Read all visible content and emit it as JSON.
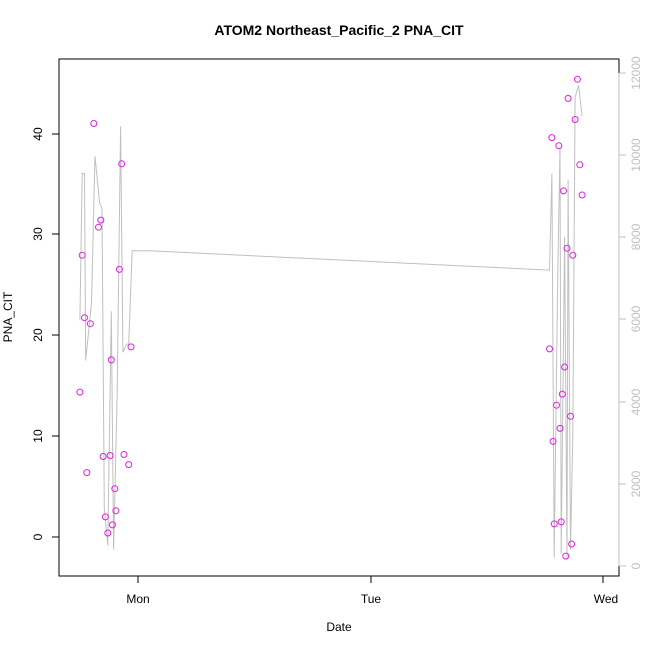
{
  "chart_data": {
    "type": "scatter",
    "title": "ATOM2 Northeast_Pacific_2 PNA_CIT",
    "xlabel": "Date",
    "ylabel": "PNA_CIT",
    "x_ticks": [
      "Mon",
      "Tue",
      "Wed"
    ],
    "y_ticks": [
      "0",
      "10",
      "20",
      "30",
      "40"
    ],
    "y2_ticks": [
      "0",
      "2000",
      "4000",
      "6000",
      "8000",
      "10000",
      "12000"
    ],
    "ylim": [
      -3.8,
      47.8
    ],
    "y2lim": [
      -200,
      12300
    ],
    "grid": false,
    "colors": {
      "points": "#e020e0",
      "line": "#c0c0c0",
      "axis": "#000000",
      "axis_right": "#c0c0c0"
    },
    "series": [
      {
        "marker": "circle-open",
        "axis": "left",
        "points": [
          {
            "day": -0.25,
            "y": 14.4
          },
          {
            "day": -0.24,
            "y": 28.0
          },
          {
            "day": -0.23,
            "y": 21.8
          },
          {
            "day": -0.22,
            "y": 6.4
          },
          {
            "day": -0.205,
            "y": 21.2
          },
          {
            "day": -0.19,
            "y": 41.1
          },
          {
            "day": -0.17,
            "y": 30.8
          },
          {
            "day": -0.16,
            "y": 31.5
          },
          {
            "day": -0.15,
            "y": 8.0
          },
          {
            "day": -0.14,
            "y": 2.0
          },
          {
            "day": -0.13,
            "y": 0.4
          },
          {
            "day": -0.12,
            "y": 8.1
          },
          {
            "day": -0.115,
            "y": 17.6
          },
          {
            "day": -0.11,
            "y": 1.2
          },
          {
            "day": -0.1,
            "y": 4.8
          },
          {
            "day": -0.095,
            "y": 2.6
          },
          {
            "day": -0.08,
            "y": 26.6
          },
          {
            "day": -0.07,
            "y": 37.1
          },
          {
            "day": -0.06,
            "y": 8.2
          },
          {
            "day": -0.04,
            "y": 7.2
          },
          {
            "day": -0.03,
            "y": 18.9
          },
          {
            "day": 1.77,
            "y": 18.7
          },
          {
            "day": 1.78,
            "y": 39.7
          },
          {
            "day": 1.785,
            "y": 9.5
          },
          {
            "day": 1.79,
            "y": 1.3
          },
          {
            "day": 1.8,
            "y": 13.1
          },
          {
            "day": 1.81,
            "y": 38.9
          },
          {
            "day": 1.815,
            "y": 10.8
          },
          {
            "day": 1.82,
            "y": 1.5
          },
          {
            "day": 1.825,
            "y": 14.2
          },
          {
            "day": 1.83,
            "y": 34.4
          },
          {
            "day": 1.835,
            "y": 16.9
          },
          {
            "day": 1.84,
            "y": -1.9
          },
          {
            "day": 1.845,
            "y": 28.7
          },
          {
            "day": 1.85,
            "y": 43.6
          },
          {
            "day": 1.86,
            "y": 12.0
          },
          {
            "day": 1.865,
            "y": -0.7
          },
          {
            "day": 1.87,
            "y": 28.0
          },
          {
            "day": 1.88,
            "y": 41.5
          },
          {
            "day": 1.89,
            "y": 45.5
          },
          {
            "day": 1.9,
            "y": 37.0
          },
          {
            "day": 1.91,
            "y": 34.0
          }
        ]
      },
      {
        "marker": "line",
        "axis": "right",
        "points": [
          {
            "day": -0.25,
            "y": 5980
          },
          {
            "day": -0.24,
            "y": 9550
          },
          {
            "day": -0.23,
            "y": 9550
          },
          {
            "day": -0.225,
            "y": 5000
          },
          {
            "day": -0.2,
            "y": 6400
          },
          {
            "day": -0.185,
            "y": 9970
          },
          {
            "day": -0.165,
            "y": 8840
          },
          {
            "day": -0.155,
            "y": 8700
          },
          {
            "day": -0.145,
            "y": 1400
          },
          {
            "day": -0.13,
            "y": 500
          },
          {
            "day": -0.115,
            "y": 6200
          },
          {
            "day": -0.105,
            "y": 400
          },
          {
            "day": -0.09,
            "y": 4100
          },
          {
            "day": -0.075,
            "y": 10700
          },
          {
            "day": -0.065,
            "y": 5200
          },
          {
            "day": -0.05,
            "y": 5400
          },
          {
            "day": -0.04,
            "y": 5400
          },
          {
            "day": -0.025,
            "y": 7670
          },
          {
            "day": 0.05,
            "y": 7670
          },
          {
            "day": 1.77,
            "y": 7200
          },
          {
            "day": 1.78,
            "y": 9550
          },
          {
            "day": 1.79,
            "y": 200
          },
          {
            "day": 1.805,
            "y": 7000
          },
          {
            "day": 1.815,
            "y": 10200
          },
          {
            "day": 1.82,
            "y": 300
          },
          {
            "day": 1.835,
            "y": 8000
          },
          {
            "day": 1.845,
            "y": 200
          },
          {
            "day": 1.85,
            "y": 9400
          },
          {
            "day": 1.86,
            "y": 400
          },
          {
            "day": 1.87,
            "y": 3200
          },
          {
            "day": 1.88,
            "y": 11400
          },
          {
            "day": 1.895,
            "y": 11700
          },
          {
            "day": 1.91,
            "y": 10950
          }
        ]
      }
    ]
  }
}
